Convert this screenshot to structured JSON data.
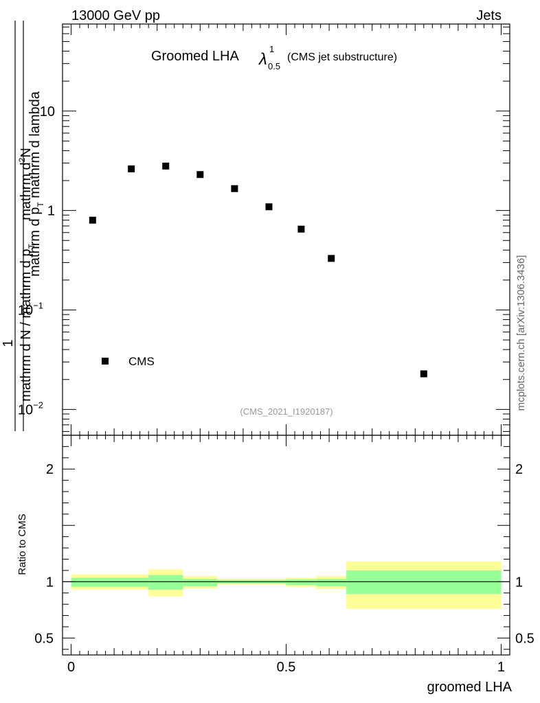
{
  "header": {
    "energy": "13000 GeV pp",
    "process": "Jets"
  },
  "chart_data": [
    {
      "type": "scatter",
      "title": "Groomed LHA",
      "title_symbol": "λ",
      "title_sup": "1",
      "title_sub": "0.5",
      "subtitle": "(CMS jet substructure)",
      "analysis_id": "(CMS_2021_I1920187)",
      "watermark": "mcplots.cern.ch [arXiv:1306.3436]",
      "ylabel_top": "mathrm d",
      "ylabel_top_sup": "2",
      "ylabel_top2": "N",
      "ylabel_bottom": "mathrm d p",
      "ylabel_bottom_sub": "T",
      "ylabel_bottom2": " mathrm d lambda",
      "ylabel_left_num": "1",
      "ylabel_left_den": "mathrm d N / mathrm d p",
      "ylabel_left_den_sub": "T",
      "yscale": "log",
      "ylim": [
        0.0055,
        75
      ],
      "xlim": [
        -0.02,
        1.02
      ],
      "yticks": [
        {
          "value": 10,
          "label": "10",
          "exp": ""
        },
        {
          "value": 1,
          "label": "1",
          "exp": ""
        },
        {
          "value": 0.1,
          "label": "10",
          "exp": "−1"
        },
        {
          "value": 0.01,
          "label": "10",
          "exp": "−2"
        }
      ],
      "legend": [
        {
          "label": "CMS",
          "marker": "square"
        }
      ],
      "series": [
        {
          "name": "CMS",
          "x": [
            0.05,
            0.14,
            0.22,
            0.3,
            0.38,
            0.46,
            0.535,
            0.605,
            0.82
          ],
          "y": [
            0.8,
            2.62,
            2.8,
            2.3,
            1.66,
            1.09,
            0.65,
            0.33,
            0.0228
          ]
        }
      ]
    },
    {
      "type": "area",
      "ylabel": "Ratio to CMS",
      "xlabel": "groomed LHA",
      "xlim": [
        -0.02,
        1.02
      ],
      "ylim": [
        0.35,
        2.3
      ],
      "xticks": [
        {
          "value": 0,
          "label": "0"
        },
        {
          "value": 0.5,
          "label": "0.5"
        },
        {
          "value": 1,
          "label": "1"
        }
      ],
      "yticks": [
        {
          "value": 0.5,
          "label": "0.5"
        },
        {
          "value": 1,
          "label": "1"
        },
        {
          "value": 2,
          "label": "2"
        }
      ],
      "reference_line": 1.0,
      "bins": [
        0.0,
        0.18,
        0.26,
        0.34,
        0.5,
        0.57,
        0.64,
        1.0
      ],
      "band_outer": {
        "color": "#ffff99",
        "lo": [
          0.93,
          0.87,
          0.94,
          0.975,
          0.955,
          0.935,
          0.76
        ],
        "hi": [
          1.065,
          1.11,
          1.05,
          1.025,
          1.035,
          1.05,
          1.18
        ]
      },
      "band_inner": {
        "color": "#99ff99",
        "lo": [
          0.955,
          0.93,
          0.96,
          0.985,
          0.97,
          0.96,
          0.89
        ],
        "hi": [
          1.035,
          1.06,
          1.025,
          1.015,
          1.02,
          1.025,
          1.1
        ]
      }
    }
  ]
}
